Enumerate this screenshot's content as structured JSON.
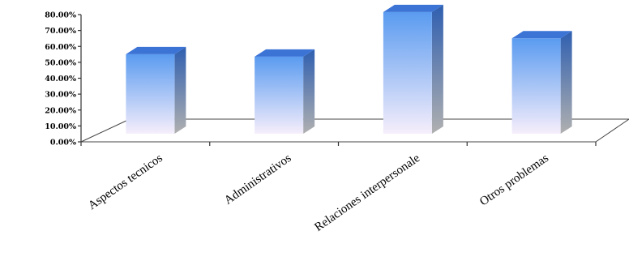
{
  "chart_data": {
    "type": "bar",
    "style": "3d-column",
    "categories": [
      "Aspectos tecnicos",
      "Administrativos",
      "Relaciones interpersonale",
      "Otros problemas"
    ],
    "values": [
      50,
      48.5,
      76.5,
      60
    ],
    "value_unit": "%",
    "ylim": [
      0,
      80
    ],
    "yticks": [
      "0.00%",
      "10.00%",
      "20.00%",
      "30.00%",
      "40.00%",
      "50.00%",
      "60.00%",
      "70.00%",
      "80.00%"
    ],
    "grid": false,
    "legend": "none",
    "colors": {
      "bar_top": "#3f7fe0",
      "bar_front_top": "#5a9bf0",
      "bar_front_bottom": "#f6eefb",
      "bar_side_top": "#2f5fb0",
      "bar_side_bottom": "#b0b0b0",
      "bar_cap": "#3c74d6"
    }
  }
}
